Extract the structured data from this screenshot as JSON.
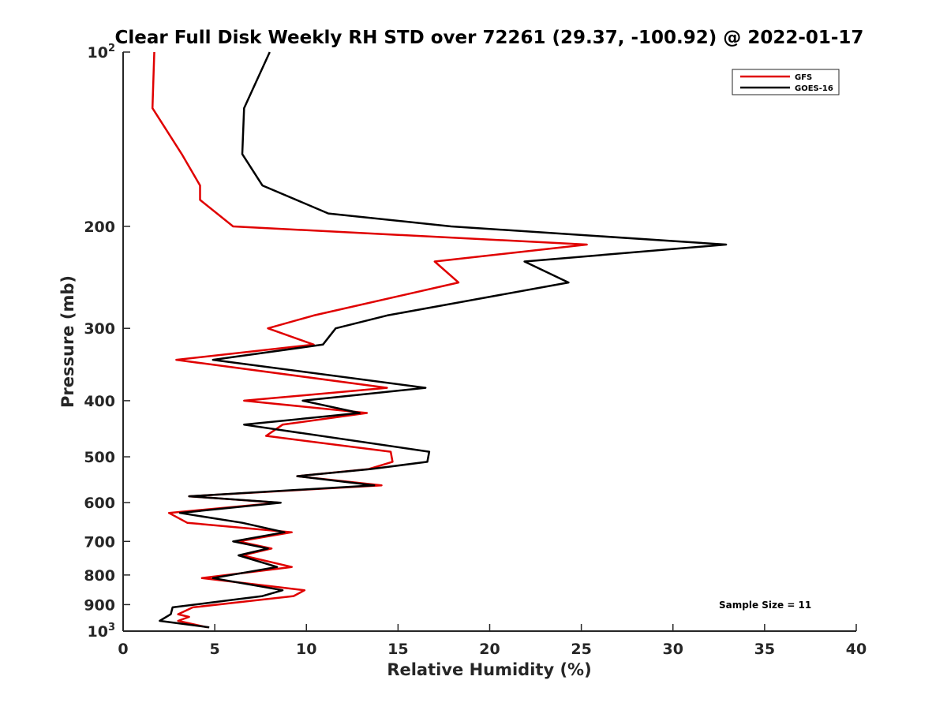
{
  "chart_data": {
    "type": "line",
    "title": "Clear Full Disk Weekly RH STD over 72261 (29.37, -100.92) @ 2022-01-17",
    "xlabel": "Relative Humidity (%)",
    "ylabel": "Pressure (mb)",
    "xlim": [
      0,
      40
    ],
    "ylim": [
      100,
      1000
    ],
    "y_scale": "log",
    "y_reversed": true,
    "x_ticks": [
      0,
      5,
      10,
      15,
      20,
      25,
      30,
      35,
      40
    ],
    "y_ticks": [
      {
        "value": 100,
        "base": "10",
        "exp": "2"
      },
      {
        "value": 200,
        "label": "200"
      },
      {
        "value": 300,
        "label": "300"
      },
      {
        "value": 400,
        "label": "400"
      },
      {
        "value": 500,
        "label": "500"
      },
      {
        "value": 600,
        "label": "600"
      },
      {
        "value": 700,
        "label": "700"
      },
      {
        "value": 800,
        "label": "800"
      },
      {
        "value": 900,
        "label": "900"
      },
      {
        "value": 1000,
        "base": "10",
        "exp": "3"
      }
    ],
    "grid": false,
    "legend_position": "top-right",
    "annotation": "Sample Size = 11",
    "series": [
      {
        "name": "GFS",
        "color": "#e00000",
        "points": [
          [
            1.7,
            100
          ],
          [
            1.6,
            125
          ],
          [
            3.2,
            150
          ],
          [
            4.2,
            170
          ],
          [
            4.2,
            180
          ],
          [
            6.0,
            200
          ],
          [
            25.3,
            215
          ],
          [
            17.0,
            230
          ],
          [
            18.3,
            250
          ],
          [
            10.4,
            285
          ],
          [
            7.9,
            300
          ],
          [
            10.4,
            320
          ],
          [
            2.9,
            340
          ],
          [
            14.4,
            380
          ],
          [
            6.6,
            400
          ],
          [
            13.3,
            420
          ],
          [
            8.7,
            440
          ],
          [
            7.8,
            460
          ],
          [
            14.6,
            490
          ],
          [
            14.7,
            510
          ],
          [
            13.4,
            525
          ],
          [
            9.5,
            540
          ],
          [
            14.1,
            560
          ],
          [
            3.6,
            585
          ],
          [
            8.5,
            600
          ],
          [
            2.5,
            625
          ],
          [
            3.5,
            650
          ],
          [
            9.2,
            675
          ],
          [
            6.3,
            700
          ],
          [
            8.1,
            720
          ],
          [
            6.5,
            740
          ],
          [
            9.2,
            775
          ],
          [
            4.3,
            810
          ],
          [
            9.9,
            850
          ],
          [
            9.3,
            870
          ],
          [
            3.8,
            910
          ],
          [
            3.0,
            935
          ],
          [
            3.6,
            945
          ],
          [
            3.0,
            960
          ],
          [
            4.6,
            985
          ]
        ]
      },
      {
        "name": "GOES-16",
        "color": "#000000",
        "points": [
          [
            8.0,
            100
          ],
          [
            6.6,
            125
          ],
          [
            6.5,
            150
          ],
          [
            7.6,
            170
          ],
          [
            11.2,
            190
          ],
          [
            17.9,
            200
          ],
          [
            32.9,
            215
          ],
          [
            21.9,
            230
          ],
          [
            24.3,
            250
          ],
          [
            14.4,
            285
          ],
          [
            11.6,
            300
          ],
          [
            10.9,
            320
          ],
          [
            4.9,
            340
          ],
          [
            16.5,
            380
          ],
          [
            9.8,
            400
          ],
          [
            12.9,
            420
          ],
          [
            6.6,
            440
          ],
          [
            16.7,
            490
          ],
          [
            16.6,
            510
          ],
          [
            13.5,
            525
          ],
          [
            9.5,
            540
          ],
          [
            13.7,
            560
          ],
          [
            3.6,
            585
          ],
          [
            8.6,
            600
          ],
          [
            3.1,
            625
          ],
          [
            6.5,
            650
          ],
          [
            8.8,
            675
          ],
          [
            6.0,
            700
          ],
          [
            7.9,
            720
          ],
          [
            6.3,
            740
          ],
          [
            8.4,
            775
          ],
          [
            4.9,
            810
          ],
          [
            8.7,
            850
          ],
          [
            7.6,
            870
          ],
          [
            2.7,
            910
          ],
          [
            2.6,
            935
          ],
          [
            2.0,
            960
          ],
          [
            4.7,
            985
          ]
        ]
      }
    ]
  }
}
